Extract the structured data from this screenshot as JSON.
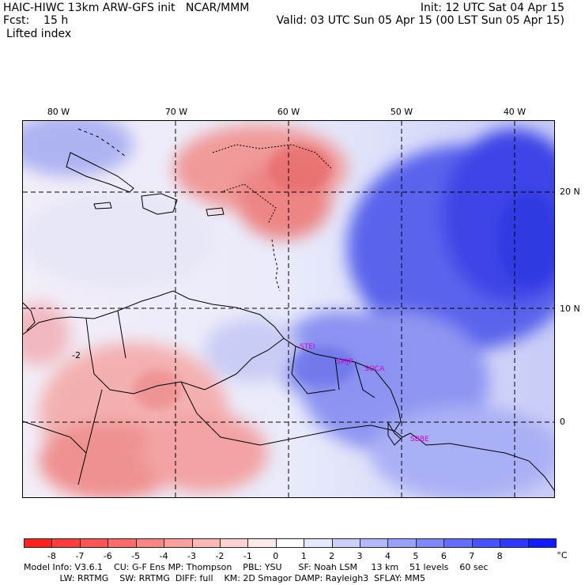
{
  "header": {
    "line1_left": "HAIC-HIWC 13km ARW-GFS init   NCAR/MMM",
    "line1_right": "Init: 12 UTC Sat 04 Apr 15",
    "line2_left": "Fcst:    15 h",
    "line2_right": "Valid: 03 UTC Sun 05 Apr 15 (00 LST Sun 05 Apr 15)",
    "field": "Lifted index"
  },
  "axes": {
    "lon_labels": [
      "80 W",
      "70 W",
      "60 W",
      "50 W",
      "40 W"
    ],
    "lat_labels": [
      "20 N",
      "10 N",
      "0"
    ]
  },
  "map": {
    "annotations": [
      "-2"
    ],
    "cities": [
      "STEI",
      "SMJP",
      "SOCA",
      "SBBE"
    ]
  },
  "colorbar": {
    "labels": [
      "-8",
      "-7",
      "-6",
      "-5",
      "-4",
      "-3",
      "-2",
      "-1",
      "0",
      "1",
      "2",
      "3",
      "4",
      "5",
      "6",
      "7",
      "8"
    ],
    "unit": "°C",
    "colors": [
      "#ff2020",
      "#ff3d3d",
      "#ff5555",
      "#ff6b6b",
      "#ff8585",
      "#ff9f9f",
      "#ffb8b8",
      "#ffd2d2",
      "#ffeaea",
      "#ffffff",
      "#e6e8ff",
      "#cdd0ff",
      "#b3b8ff",
      "#9aa0ff",
      "#7f86ff",
      "#646dff",
      "#4a52ff",
      "#2f37ff",
      "#141cff"
    ]
  },
  "footer": {
    "line1": "Model Info: V3.6.1    CU: G-F Ens MP: Thompson    PBL: YSU      SF: Noah LSM     13 km    51 levels    60 sec",
    "line2": "             LW: RRTMG    SW: RRTMG  DIFF: full    KM: 2D Smagor DAMP: Rayleigh3  SFLAY: MM5"
  }
}
